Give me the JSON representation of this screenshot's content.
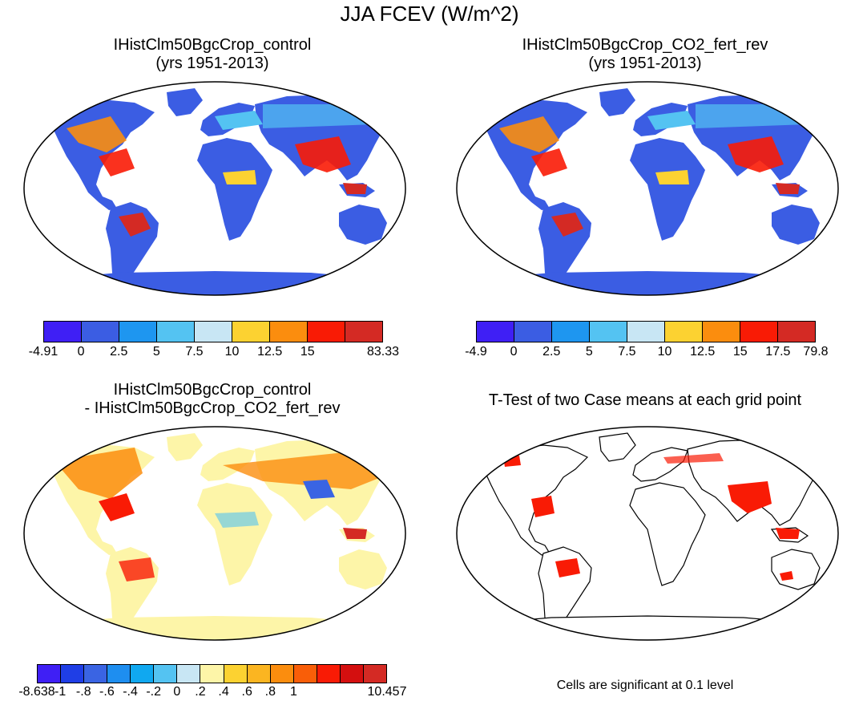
{
  "figure_title": "JJA FCEV (W/m^2)",
  "panels": [
    {
      "title_line1": "IHistClm50BgcCrop_control",
      "title_line2": "(yrs 1951-2013)",
      "colorbar": {
        "colors": [
          "#3f1ff5",
          "#3b5de3",
          "#1e96f0",
          "#54c3f2",
          "#c8e6f4",
          "#fcd231",
          "#fb8d0e",
          "#f91b05",
          "#d42a24"
        ],
        "tick_labels": [
          "-4.91",
          "0",
          "2.5",
          "5",
          "7.5",
          "10",
          "12.5",
          "15",
          "83.33"
        ]
      }
    },
    {
      "title_line1": "IHistClm50BgcCrop_CO2_fert_rev",
      "title_line2": "(yrs 1951-2013)",
      "colorbar": {
        "colors": [
          "#3f1ff5",
          "#3b5de3",
          "#1e96f0",
          "#54c3f2",
          "#c8e6f4",
          "#fcd231",
          "#fb8d0e",
          "#f91b05",
          "#d42a24"
        ],
        "tick_labels": [
          "-4.9",
          "0",
          "2.5",
          "5",
          "7.5",
          "10",
          "12.5",
          "15",
          "17.5",
          "79.8"
        ]
      }
    },
    {
      "title_line1": "IHistClm50BgcCrop_control",
      "title_line2": "- IHistClm50BgcCrop_CO2_fert_rev",
      "colorbar": {
        "colors": [
          "#3f1ff5",
          "#1f3ee6",
          "#3a64e3",
          "#1e8ef0",
          "#10a8f0",
          "#54c3f2",
          "#c8e6f4",
          "#fdf5a8",
          "#fcd231",
          "#fbb521",
          "#fb8d0e",
          "#f95e08",
          "#f91b05",
          "#d40f0f",
          "#d42a24"
        ],
        "tick_labels": [
          "-8.638",
          "-1",
          "-.8",
          "-.6",
          "-.4",
          "-.2",
          "0",
          ".2",
          ".4",
          ".6",
          ".8",
          "1",
          "10.457"
        ]
      }
    },
    {
      "title_line1": "T-Test of two Case means at each grid point",
      "note": "Cells are significant at 0.1 level"
    }
  ]
}
